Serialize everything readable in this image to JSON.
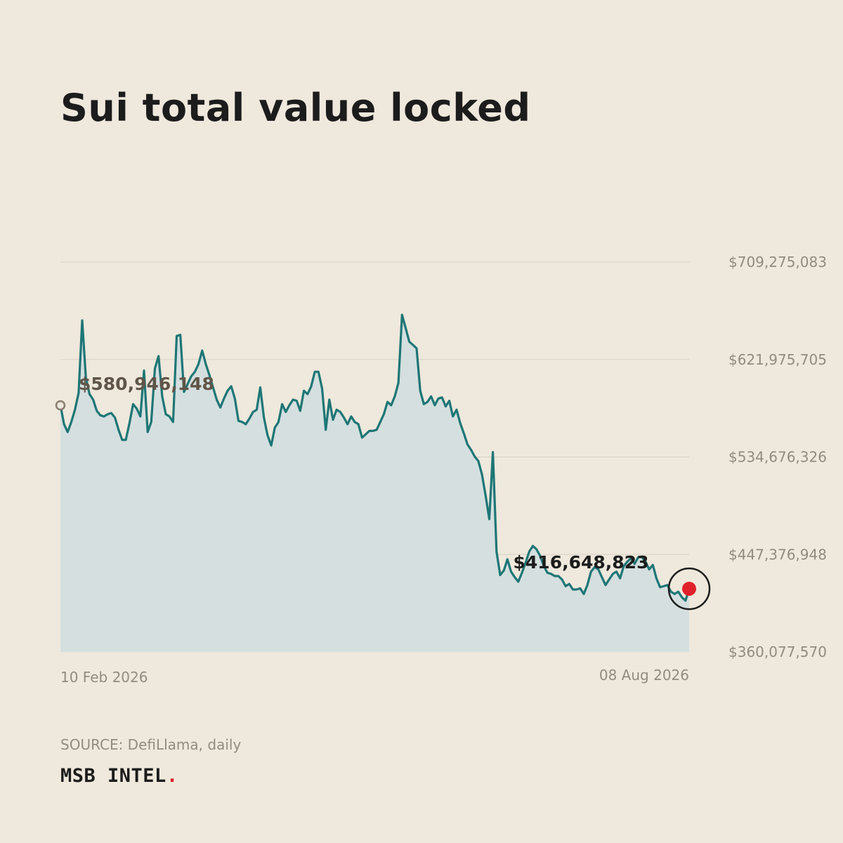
{
  "title": "Sui total value locked",
  "source": "SOURCE: DefiLlama, daily",
  "brand": {
    "name": "MSB INTEL",
    "dot": "."
  },
  "colors": {
    "background": "#efe8dc",
    "line": "#1e7676",
    "area": "#d5dfdf",
    "grid": "#d7d0c5",
    "marker_start": "#8a7f70",
    "marker_end": "#e0202a"
  },
  "chart_data": {
    "type": "area",
    "title": "Sui total value locked",
    "xlabel": "",
    "ylabel": "",
    "x_start": "10 Feb 2026",
    "x_end": "08 Aug 2026",
    "x_tick_labels": [
      "10 Feb 2026",
      "08 Aug 2026"
    ],
    "y_ticks": [
      {
        "value": 709275083,
        "label": "$709,275,083"
      },
      {
        "value": 621975705,
        "label": "$621,975,705"
      },
      {
        "value": 534676326,
        "label": "$534,676,326"
      },
      {
        "value": 447376948,
        "label": "$447,376,948"
      },
      {
        "value": 360077570,
        "label": "$360,077,570"
      }
    ],
    "ylim": [
      360077570,
      709275083
    ],
    "grid": true,
    "start_annotation": {
      "value": 580946148,
      "label": "$580,946,148"
    },
    "end_annotation": {
      "value": 416648823,
      "label": "$416,648,823"
    },
    "values": [
      580946148,
      564000000,
      557000000,
      566000000,
      577000000,
      592000000,
      657000000,
      606000000,
      591000000,
      586000000,
      576000000,
      572000000,
      571000000,
      573000000,
      574000000,
      570000000,
      559000000,
      550000000,
      550000000,
      565000000,
      582000000,
      578000000,
      571000000,
      612000000,
      557000000,
      566000000,
      614000000,
      625000000,
      589000000,
      573000000,
      571000000,
      566000000,
      643000000,
      644000000,
      593000000,
      600000000,
      607000000,
      611000000,
      618000000,
      630000000,
      618000000,
      608000000,
      597000000,
      586000000,
      579000000,
      587000000,
      594000000,
      598000000,
      587000000,
      567000000,
      566000000,
      564000000,
      569000000,
      575000000,
      577000000,
      597000000,
      570000000,
      554000000,
      545000000,
      561000000,
      566000000,
      582000000,
      575000000,
      581000000,
      586000000,
      585000000,
      576000000,
      594000000,
      591000000,
      598000000,
      611000000,
      611000000,
      596000000,
      559000000,
      586000000,
      568000000,
      577000000,
      575000000,
      570000000,
      564000000,
      571000000,
      566000000,
      564000000,
      552000000,
      555000000,
      558000000,
      558000000,
      559000000,
      566000000,
      573000000,
      584000000,
      581000000,
      589000000,
      601000000,
      662000000,
      650000000,
      638000000,
      635000000,
      632000000,
      594000000,
      582000000,
      584000000,
      589000000,
      581000000,
      587000000,
      588000000,
      580000000,
      585000000,
      571000000,
      577000000,
      565000000,
      556000000,
      546000000,
      541000000,
      535000000,
      531000000,
      519000000,
      500000000,
      479000000,
      539000000,
      450000000,
      429000000,
      433000000,
      443000000,
      432000000,
      427000000,
      423000000,
      431000000,
      440000000,
      450000000,
      455000000,
      452000000,
      446000000,
      437000000,
      431000000,
      430000000,
      428000000,
      428000000,
      425000000,
      419000000,
      421000000,
      416000000,
      416000000,
      417000000,
      412000000,
      420000000,
      432000000,
      436000000,
      434000000,
      427000000,
      420000000,
      425000000,
      430000000,
      432000000,
      426000000,
      437000000,
      441000000,
      444000000,
      439000000,
      445000000,
      445000000,
      441000000,
      434000000,
      438000000,
      426000000,
      418000000,
      419000000,
      420000000,
      414000000,
      412000000,
      414000000,
      409000000,
      406000000,
      416648823
    ]
  }
}
